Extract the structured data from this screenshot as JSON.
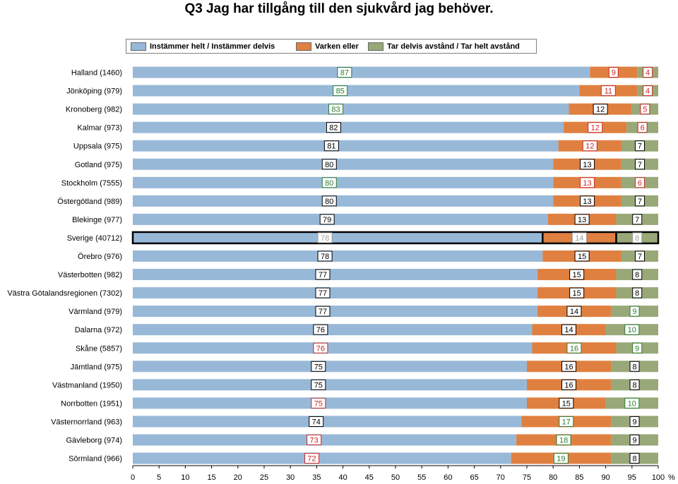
{
  "chart_data": {
    "type": "bar",
    "orientation": "horizontal",
    "stacked": true,
    "title": "Q3 Jag har tillgång till den sjukvård jag behöver.",
    "xlabel": "%",
    "xlim": [
      0,
      100
    ],
    "xticks": [
      "0",
      "5",
      "10",
      "15",
      "20",
      "25",
      "30",
      "35",
      "40",
      "45",
      "50",
      "55",
      "60",
      "65",
      "70",
      "75",
      "80",
      "85",
      "90",
      "95",
      "100"
    ],
    "legend_position": "top",
    "series": [
      {
        "name": "Instämmer helt / Instämmer delvis",
        "color": "#98b8d8"
      },
      {
        "name": "Varken eller",
        "color": "#e08040"
      },
      {
        "name": "Tar delvis avstånd / Tar helt avstånd",
        "color": "#98a878"
      }
    ],
    "highlight_category": "Sverige (40712)",
    "categories": [
      {
        "name": "Halland (1460)",
        "values": [
          87,
          9,
          4
        ],
        "label_colors": [
          "green",
          "red",
          "red"
        ]
      },
      {
        "name": "Jönköping (979)",
        "values": [
          85,
          11,
          4
        ],
        "label_colors": [
          "green",
          "red",
          "red"
        ]
      },
      {
        "name": "Kronoberg (982)",
        "values": [
          83,
          12,
          5
        ],
        "label_colors": [
          "green",
          "black",
          "red"
        ]
      },
      {
        "name": "Kalmar (973)",
        "values": [
          82,
          12,
          6
        ],
        "label_colors": [
          "black",
          "red",
          "red"
        ]
      },
      {
        "name": "Uppsala (975)",
        "values": [
          81,
          12,
          7
        ],
        "label_colors": [
          "black",
          "red",
          "black"
        ]
      },
      {
        "name": "Gotland (975)",
        "values": [
          80,
          13,
          7
        ],
        "label_colors": [
          "black",
          "black",
          "black"
        ]
      },
      {
        "name": "Stockholm (7555)",
        "values": [
          80,
          13,
          6
        ],
        "label_colors": [
          "green",
          "red",
          "red"
        ]
      },
      {
        "name": "Östergötland (989)",
        "values": [
          80,
          13,
          7
        ],
        "label_colors": [
          "black",
          "black",
          "black"
        ]
      },
      {
        "name": "Blekinge (977)",
        "values": [
          79,
          13,
          7
        ],
        "label_colors": [
          "black",
          "black",
          "black"
        ]
      },
      {
        "name": "Sverige (40712)",
        "values": [
          78,
          14,
          8
        ],
        "label_colors": [
          "grey",
          "grey",
          "grey"
        ]
      },
      {
        "name": "Örebro (976)",
        "values": [
          78,
          15,
          7
        ],
        "label_colors": [
          "black",
          "black",
          "black"
        ]
      },
      {
        "name": "Västerbotten (982)",
        "values": [
          77,
          15,
          8
        ],
        "label_colors": [
          "black",
          "black",
          "black"
        ]
      },
      {
        "name": "Västra Götalandsregionen (7302)",
        "values": [
          77,
          15,
          8
        ],
        "label_colors": [
          "black",
          "black",
          "black"
        ]
      },
      {
        "name": "Värmland (979)",
        "values": [
          77,
          14,
          9
        ],
        "label_colors": [
          "black",
          "black",
          "green"
        ]
      },
      {
        "name": "Dalarna (972)",
        "values": [
          76,
          14,
          10
        ],
        "label_colors": [
          "black",
          "black",
          "green"
        ]
      },
      {
        "name": "Skåne (5857)",
        "values": [
          76,
          16,
          9
        ],
        "label_colors": [
          "red",
          "green",
          "green"
        ]
      },
      {
        "name": "Jämtland (975)",
        "values": [
          75,
          16,
          8
        ],
        "label_colors": [
          "black",
          "black",
          "black"
        ]
      },
      {
        "name": "Västmanland (1950)",
        "values": [
          75,
          16,
          8
        ],
        "label_colors": [
          "black",
          "black",
          "black"
        ]
      },
      {
        "name": "Norrbotten (1951)",
        "values": [
          75,
          15,
          10
        ],
        "label_colors": [
          "red",
          "black",
          "green"
        ]
      },
      {
        "name": "Västernorrland (963)",
        "values": [
          74,
          17,
          9
        ],
        "label_colors": [
          "black",
          "green",
          "black"
        ]
      },
      {
        "name": "Gävleborg (974)",
        "values": [
          73,
          18,
          9
        ],
        "label_colors": [
          "red",
          "green",
          "black"
        ]
      },
      {
        "name": "Sörmland (966)",
        "values": [
          72,
          19,
          8
        ],
        "label_colors": [
          "red",
          "green",
          "black"
        ]
      }
    ]
  },
  "label_color_map": {
    "green": "#2e7d32",
    "red": "#c62828",
    "black": "#000000",
    "grey": "#a0a0a0"
  }
}
